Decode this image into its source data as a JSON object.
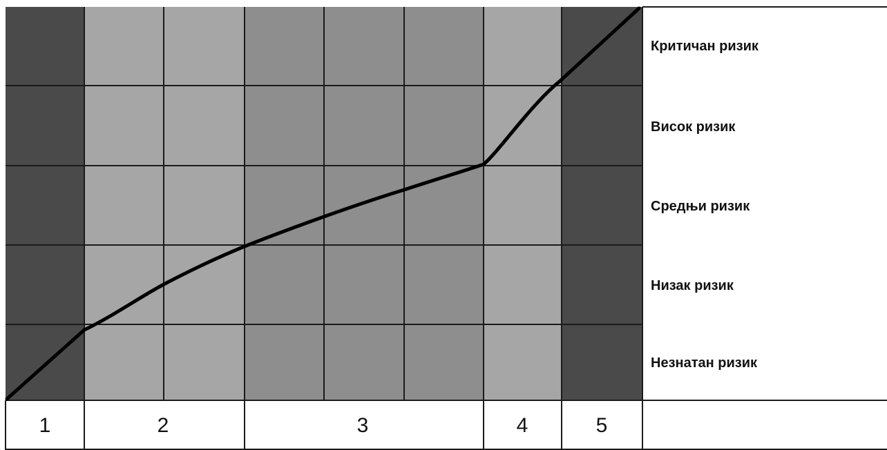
{
  "risk_levels": [
    "Критичан ризик",
    "Висок ризик",
    "Средњи ризик",
    "Низак ризик",
    "Незнатан ризик"
  ],
  "zones": [
    "1",
    "2",
    "3",
    "4",
    "5"
  ],
  "colors": {
    "dark_zone": "#4a4a4a",
    "light_zone": "#a6a6a6",
    "mid_zone": "#8e8e8e",
    "grid_line": "#1a1a1a",
    "curve": "#000000",
    "label_background": "#ffffff"
  }
}
